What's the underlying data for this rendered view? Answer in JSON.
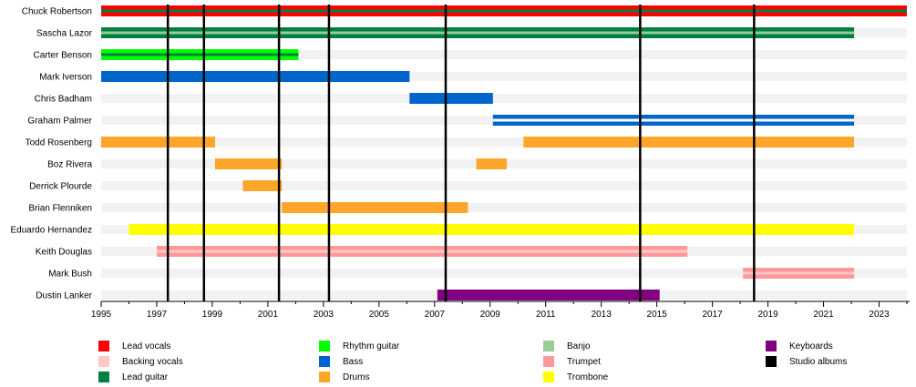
{
  "chart_data": {
    "type": "timeline",
    "title": "",
    "x_range": [
      1995,
      2024
    ],
    "tick_labels": [
      "1995",
      "1997",
      "1999",
      "2001",
      "2003",
      "2005",
      "2007",
      "2009",
      "2011",
      "2013",
      "2015",
      "2017",
      "2019",
      "2021",
      "2023"
    ],
    "roles": [
      {
        "key": "lead_vocals",
        "name": "Lead vocals",
        "color": "#ff0000"
      },
      {
        "key": "backing_vocals",
        "name": "Backing vocals",
        "color": "#ffc8c8"
      },
      {
        "key": "lead_guitar",
        "name": "Lead guitar",
        "color": "#008040"
      },
      {
        "key": "rhythm_guitar",
        "name": "Rhythm guitar",
        "color": "#00ff00"
      },
      {
        "key": "bass",
        "name": "Bass",
        "color": "#0066cc"
      },
      {
        "key": "drums",
        "name": "Drums",
        "color": "#ffa52a"
      },
      {
        "key": "banjo",
        "name": "Banjo",
        "color": "#99cc99"
      },
      {
        "key": "trumpet",
        "name": "Trumpet",
        "color": "#ff9999"
      },
      {
        "key": "trombone",
        "name": "Trombone",
        "color": "#ffff00"
      },
      {
        "key": "keyboards",
        "name": "Keyboards",
        "color": "#800080"
      },
      {
        "key": "studio_albums",
        "name": "Studio albums",
        "color": "#000000"
      }
    ],
    "members": [
      {
        "name": "Chuck Robertson",
        "periods": [
          {
            "start": 1995,
            "end": 2024,
            "role": "lead_vocals",
            "stripe": "lead_guitar"
          }
        ]
      },
      {
        "name": "Sascha Lazor",
        "periods": [
          {
            "start": 1995,
            "end": 2022.1,
            "role": "lead_guitar",
            "stripe": "banjo"
          }
        ]
      },
      {
        "name": "Carter Benson",
        "periods": [
          {
            "start": 1995,
            "end": 2002.1,
            "role": "rhythm_guitar",
            "stripe": "lead_guitar"
          }
        ]
      },
      {
        "name": "Mark Iverson",
        "periods": [
          {
            "start": 1995,
            "end": 2006.1,
            "role": "bass"
          }
        ]
      },
      {
        "name": "Chris Badham",
        "periods": [
          {
            "start": 2006.1,
            "end": 2009.1,
            "role": "bass"
          }
        ]
      },
      {
        "name": "Graham Palmer",
        "periods": [
          {
            "start": 2009.1,
            "end": 2022.1,
            "role": "bass",
            "stripe": "white"
          }
        ]
      },
      {
        "name": "Todd Rosenberg",
        "periods": [
          {
            "start": 1995,
            "end": 1999.1,
            "role": "drums"
          },
          {
            "start": 2010.2,
            "end": 2022.1,
            "role": "drums"
          }
        ]
      },
      {
        "name": "Boz Rivera",
        "periods": [
          {
            "start": 1999.1,
            "end": 2001.5,
            "role": "drums"
          },
          {
            "start": 2008.5,
            "end": 2009.6,
            "role": "drums"
          }
        ]
      },
      {
        "name": "Derrick Plourde",
        "periods": [
          {
            "start": 2000.1,
            "end": 2001.5,
            "role": "drums"
          }
        ]
      },
      {
        "name": "Brian Flenniken",
        "periods": [
          {
            "start": 2001.5,
            "end": 2008.2,
            "role": "drums"
          }
        ]
      },
      {
        "name": "Eduardo Hernandez",
        "periods": [
          {
            "start": 1996.0,
            "end": 2022.1,
            "role": "trombone"
          }
        ]
      },
      {
        "name": "Keith Douglas",
        "periods": [
          {
            "start": 1997.0,
            "end": 2016.1,
            "role": "trumpet",
            "stripe": "backing_vocals"
          }
        ]
      },
      {
        "name": "Mark Bush",
        "periods": [
          {
            "start": 2018.1,
            "end": 2022.1,
            "role": "trumpet",
            "stripe": "backing_vocals"
          }
        ]
      },
      {
        "name": "Dustin Lanker",
        "periods": [
          {
            "start": 2007.1,
            "end": 2015.1,
            "role": "keyboards"
          }
        ]
      }
    ],
    "studio_albums_years": [
      1997.4,
      1998.7,
      2001.4,
      2003.2,
      2007.4,
      2014.4,
      2018.5
    ]
  }
}
